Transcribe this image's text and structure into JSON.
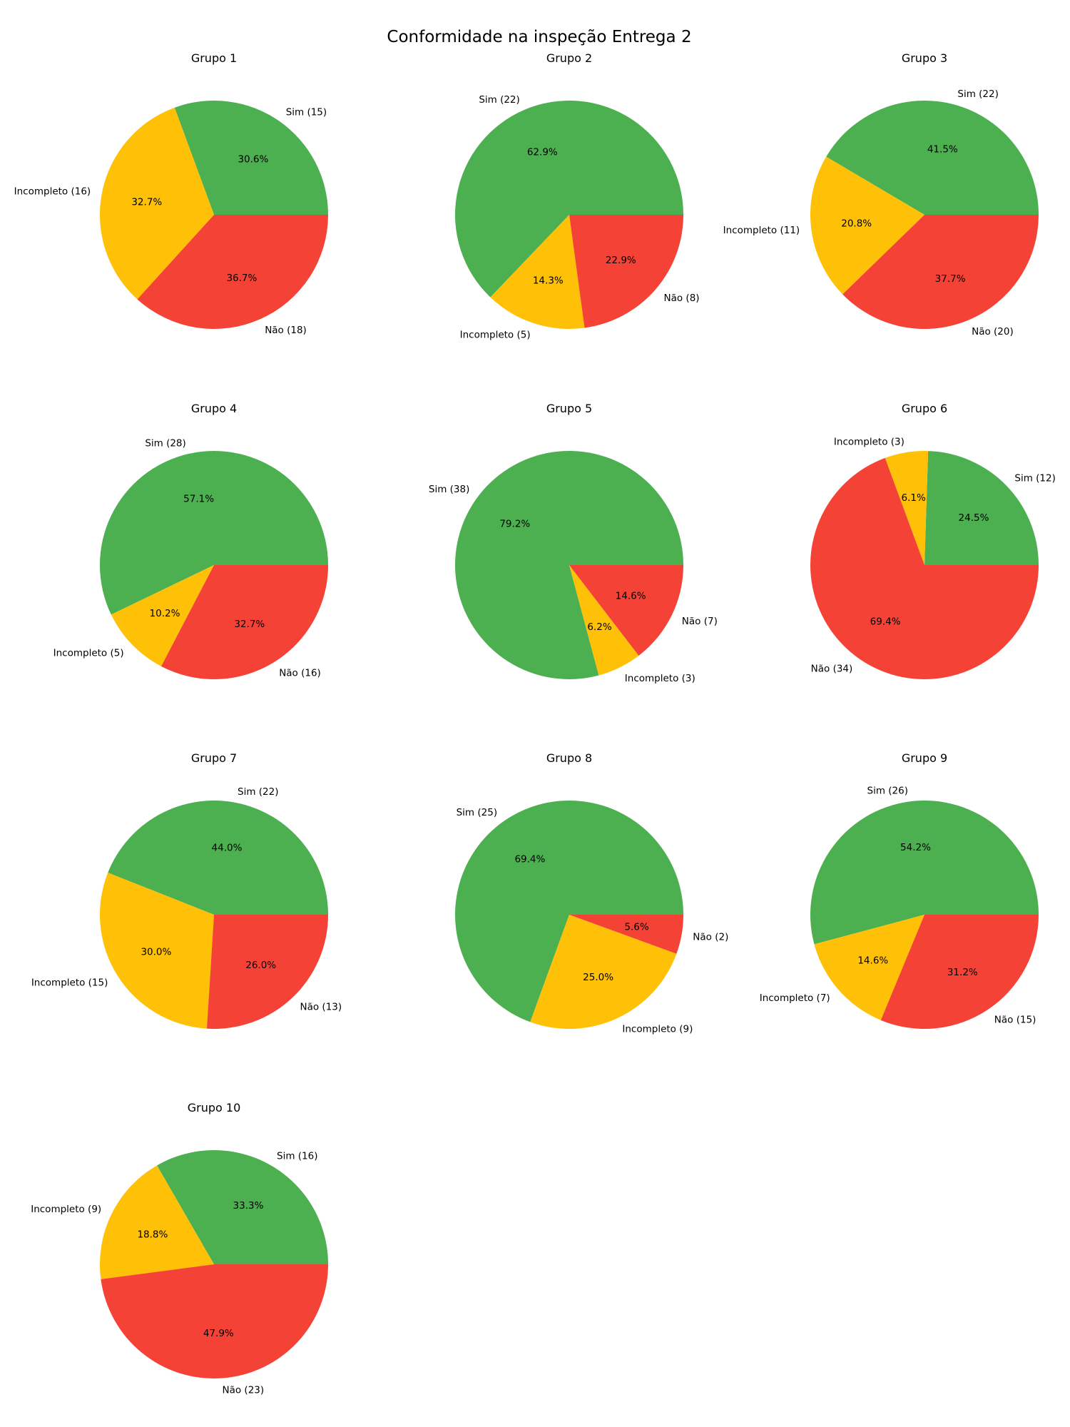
{
  "title": "Conformidade na inspeção Entrega 2",
  "colors": {
    "Sim": "#4CAF50",
    "Incompleto": "#FFC107",
    "Não": "#F44336"
  },
  "chart_data": [
    {
      "type": "pie",
      "title": "Grupo 1",
      "labels": [
        "Sim (15)",
        "Incompleto (16)",
        "Não (18)"
      ],
      "values": [
        15,
        16,
        18
      ],
      "percent_labels": [
        "30.6%",
        "32.7%",
        "36.7%"
      ]
    },
    {
      "type": "pie",
      "title": "Grupo 2",
      "labels": [
        "Sim (22)",
        "Incompleto (5)",
        "Não (8)"
      ],
      "values": [
        22,
        5,
        8
      ],
      "percent_labels": [
        "62.9%",
        "14.3%",
        "22.9%"
      ]
    },
    {
      "type": "pie",
      "title": "Grupo 3",
      "labels": [
        "Sim (22)",
        "Incompleto (11)",
        "Não (20)"
      ],
      "values": [
        22,
        11,
        20
      ],
      "percent_labels": [
        "41.5%",
        "20.8%",
        "37.7%"
      ]
    },
    {
      "type": "pie",
      "title": "Grupo 4",
      "labels": [
        "Sim (28)",
        "Incompleto (5)",
        "Não (16)"
      ],
      "values": [
        28,
        5,
        16
      ],
      "percent_labels": [
        "57.1%",
        "10.2%",
        "32.7%"
      ]
    },
    {
      "type": "pie",
      "title": "Grupo 5",
      "labels": [
        "Sim (38)",
        "Incompleto (3)",
        "Não (7)"
      ],
      "values": [
        38,
        3,
        7
      ],
      "percent_labels": [
        "79.2%",
        "6.2%",
        "14.6%"
      ]
    },
    {
      "type": "pie",
      "title": "Grupo 6",
      "labels": [
        "Sim (12)",
        "Incompleto (3)",
        "Não (34)"
      ],
      "values": [
        12,
        3,
        34
      ],
      "percent_labels": [
        "24.5%",
        "6.1%",
        "69.4%"
      ]
    },
    {
      "type": "pie",
      "title": "Grupo 7",
      "labels": [
        "Sim (22)",
        "Incompleto (15)",
        "Não (13)"
      ],
      "values": [
        22,
        15,
        13
      ],
      "percent_labels": [
        "44.0%",
        "30.0%",
        "26.0%"
      ]
    },
    {
      "type": "pie",
      "title": "Grupo 8",
      "labels": [
        "Sim (25)",
        "Incompleto (9)",
        "Não (2)"
      ],
      "values": [
        25,
        9,
        2
      ],
      "percent_labels": [
        "69.4%",
        "25.0%",
        "5.6%"
      ]
    },
    {
      "type": "pie",
      "title": "Grupo 9",
      "labels": [
        "Sim (26)",
        "Incompleto (7)",
        "Não (15)"
      ],
      "values": [
        26,
        7,
        15
      ],
      "percent_labels": [
        "54.2%",
        "14.6%",
        "31.2%"
      ]
    },
    {
      "type": "pie",
      "title": "Grupo 10",
      "labels": [
        "Sim (16)",
        "Incompleto (9)",
        "Não (23)"
      ],
      "values": [
        16,
        9,
        23
      ],
      "percent_labels": [
        "33.3%",
        "18.8%",
        "47.9%"
      ]
    }
  ]
}
